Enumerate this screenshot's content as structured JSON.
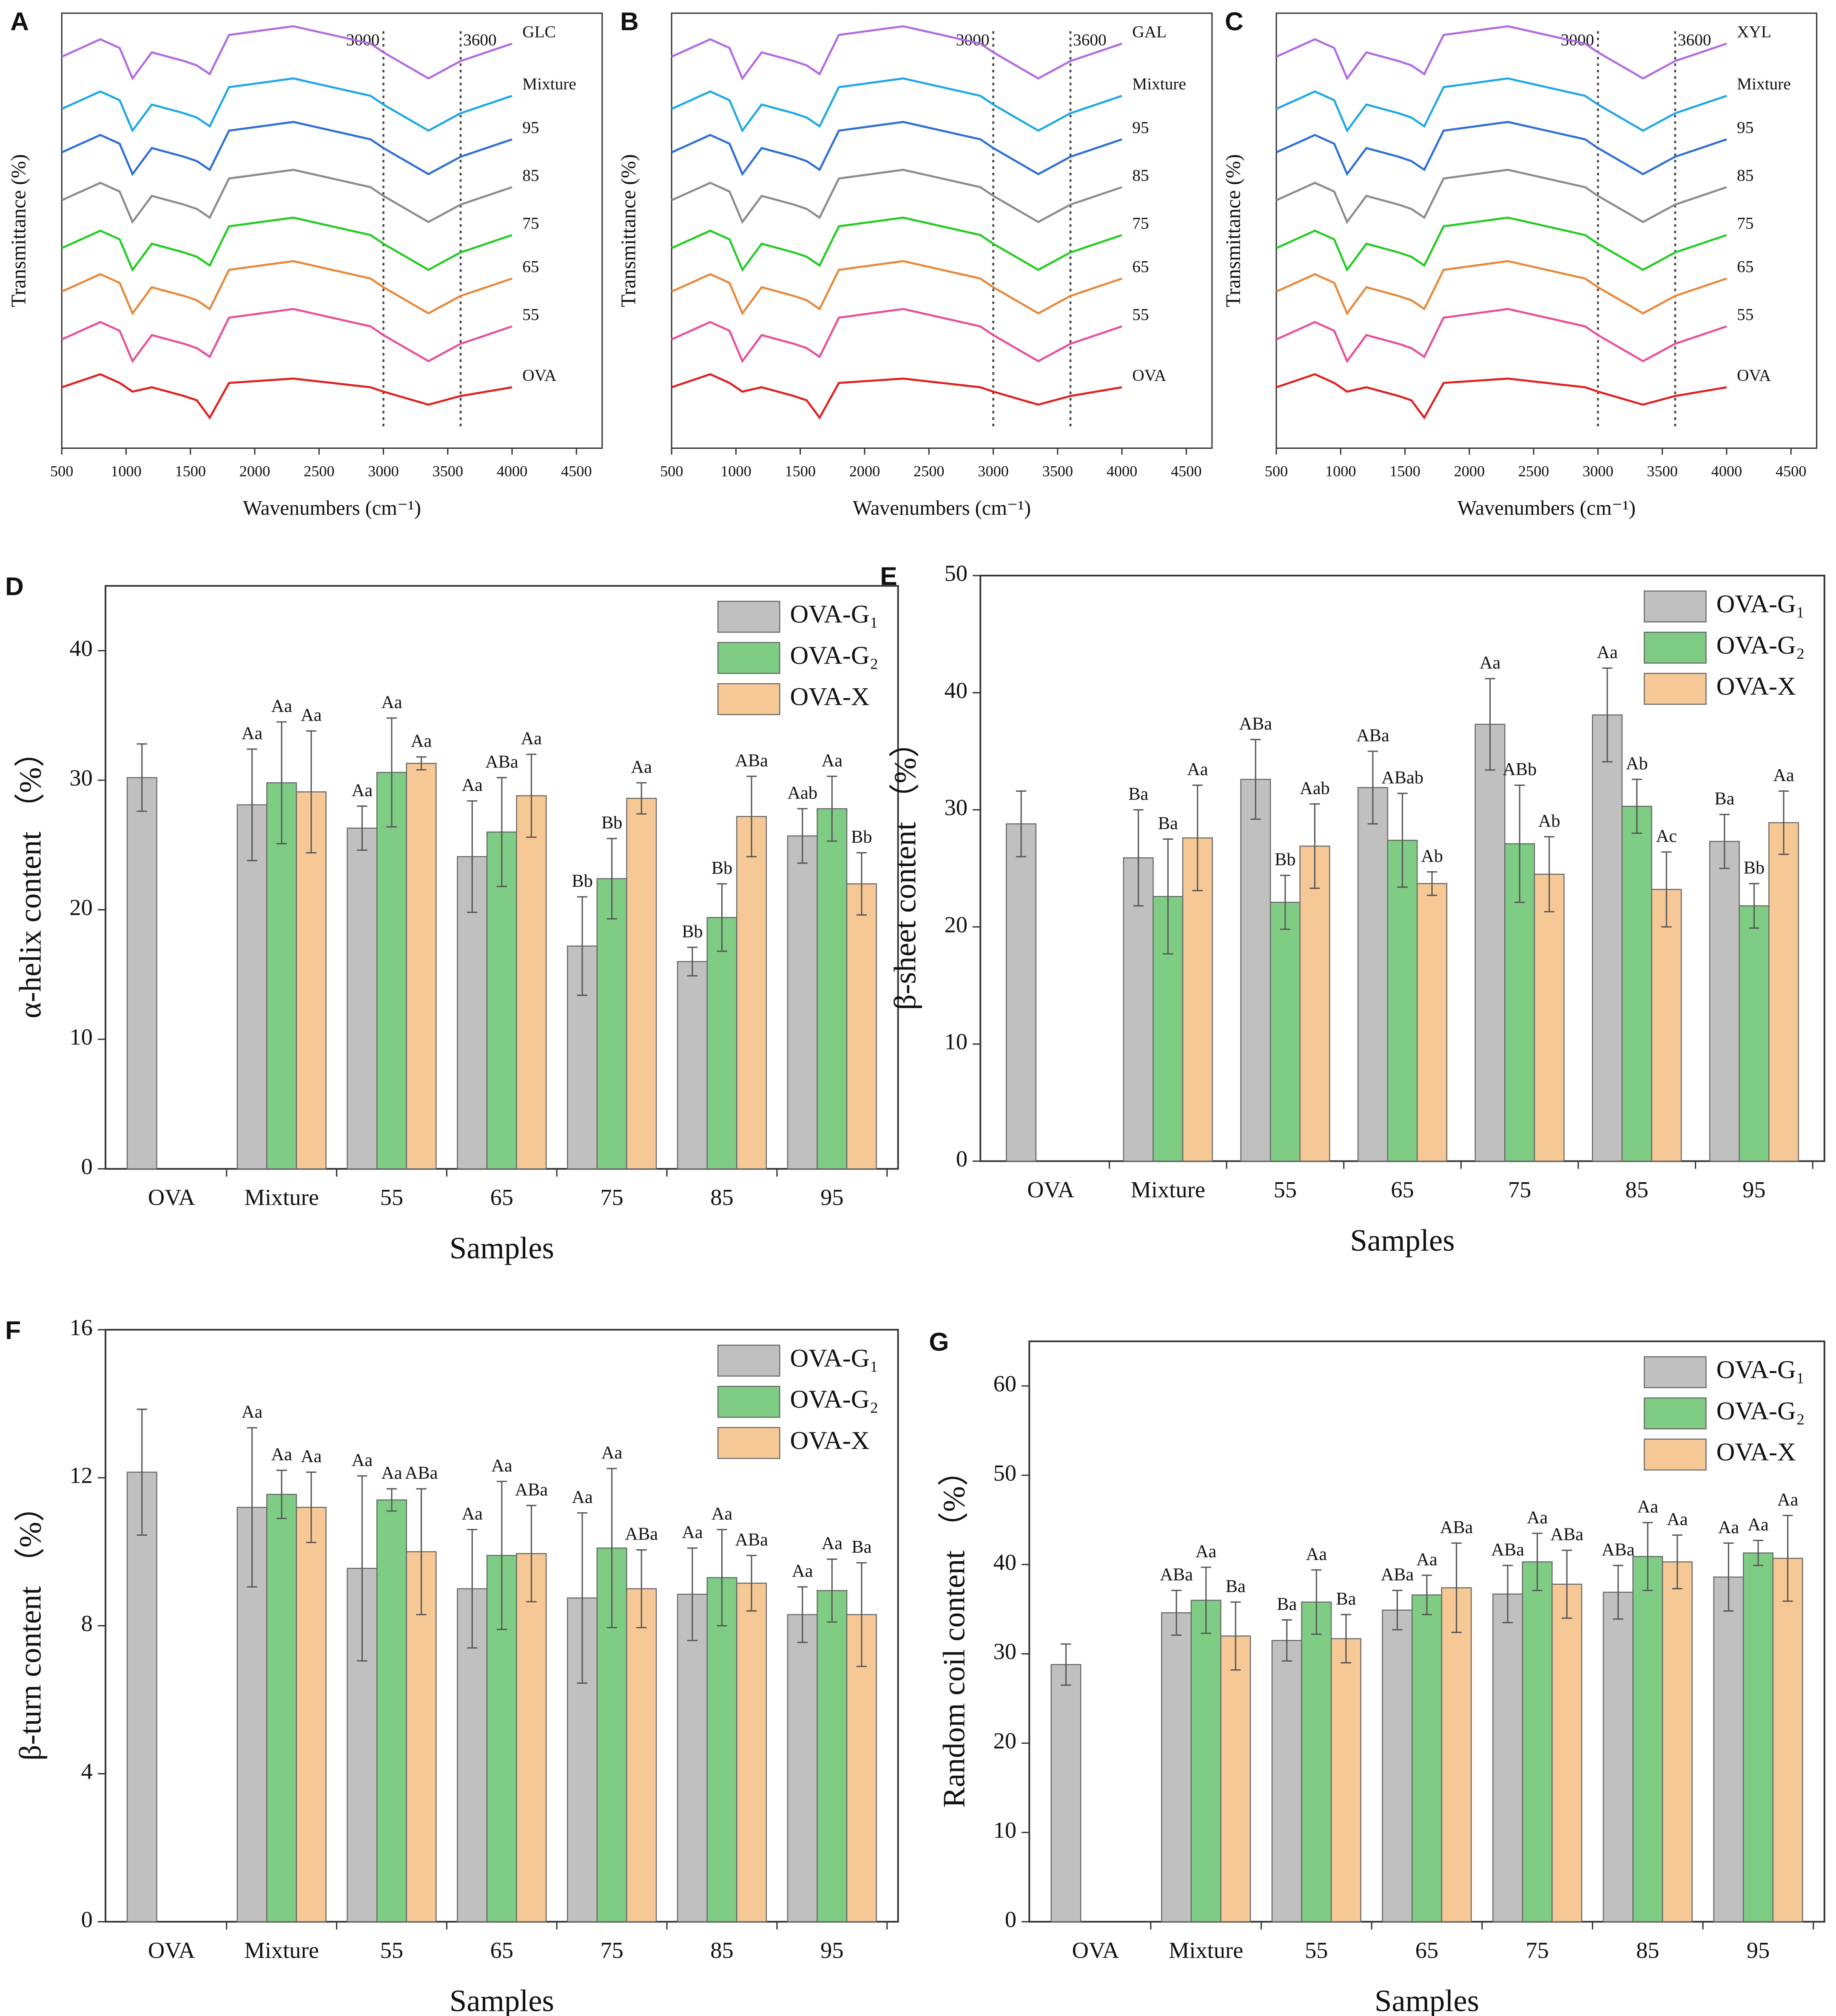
{
  "chart_data": [
    {
      "type": "line",
      "panel": "A",
      "xlabel": "Wavenumbers (cm⁻¹)",
      "ylabel": "Transmittance (%)",
      "xlim": [
        500,
        4700
      ],
      "xticks": [
        500,
        1000,
        1500,
        2000,
        2500,
        3000,
        3500,
        4000,
        4500
      ],
      "ylim": [
        0,
        100
      ],
      "vlines": [
        {
          "value": 3000,
          "label": "3000"
        },
        {
          "value": 3600,
          "label": "3600"
        }
      ],
      "x": [
        500,
        800,
        950,
        1050,
        1200,
        1450,
        1550,
        1650,
        1800,
        2300,
        2900,
        3000,
        3350,
        3600,
        4000
      ],
      "series": [
        {
          "name": "GLC",
          "color": "#b36ae2",
          "values": [
            90,
            94,
            92,
            85,
            91,
            89,
            88,
            86,
            95,
            97,
            93,
            91,
            85,
            89,
            93
          ]
        },
        {
          "name": "Mixture",
          "color": "#1ea7e6",
          "values": [
            78,
            82,
            80,
            73,
            79,
            77,
            76,
            74,
            83,
            85,
            81,
            79,
            73,
            77,
            81
          ]
        },
        {
          "name": "95",
          "color": "#2e6fd6",
          "values": [
            68,
            72,
            70,
            63,
            69,
            67,
            66,
            64,
            73,
            75,
            71,
            69,
            63,
            67,
            71
          ]
        },
        {
          "name": "85",
          "color": "#8c8c8c",
          "values": [
            57,
            61,
            59,
            52,
            58,
            56,
            55,
            53,
            62,
            64,
            60,
            58,
            52,
            56,
            60
          ]
        },
        {
          "name": "75",
          "color": "#22cc22",
          "values": [
            46,
            50,
            48,
            41,
            47,
            45,
            44,
            42,
            51,
            53,
            49,
            47,
            41,
            45,
            49
          ]
        },
        {
          "name": "65",
          "color": "#e8883a",
          "values": [
            36,
            40,
            38,
            31,
            37,
            35,
            34,
            32,
            41,
            43,
            39,
            37,
            31,
            35,
            39
          ]
        },
        {
          "name": "55",
          "color": "#e8509a",
          "values": [
            25,
            29,
            27,
            20,
            26,
            24,
            23,
            21,
            30,
            32,
            28,
            26,
            20,
            24,
            28
          ]
        },
        {
          "name": "OVA",
          "color": "#e02020",
          "values": [
            14,
            17,
            15,
            13,
            14,
            12,
            11,
            7,
            15,
            16,
            14,
            13,
            10,
            12,
            14
          ]
        }
      ]
    },
    {
      "type": "line",
      "panel": "B",
      "xlabel": "Wavenumbers (cm⁻¹)",
      "ylabel": "Transmittance (%)",
      "xlim": [
        500,
        4700
      ],
      "xticks": [
        500,
        1000,
        1500,
        2000,
        2500,
        3000,
        3500,
        4000,
        4500
      ],
      "ylim": [
        0,
        100
      ],
      "vlines": [
        {
          "value": 3000,
          "label": "3000"
        },
        {
          "value": 3600,
          "label": "3600"
        }
      ],
      "x": [
        500,
        800,
        950,
        1050,
        1200,
        1450,
        1550,
        1650,
        1800,
        2300,
        2900,
        3000,
        3350,
        3600,
        4000
      ],
      "series": [
        {
          "name": "GAL",
          "color": "#b36ae2",
          "values": [
            90,
            94,
            92,
            85,
            91,
            89,
            88,
            86,
            95,
            97,
            93,
            91,
            85,
            89,
            93
          ]
        },
        {
          "name": "Mixture",
          "color": "#1ea7e6",
          "values": [
            78,
            82,
            80,
            73,
            79,
            77,
            76,
            74,
            83,
            85,
            81,
            79,
            73,
            77,
            81
          ]
        },
        {
          "name": "95",
          "color": "#2e6fd6",
          "values": [
            68,
            72,
            70,
            63,
            69,
            67,
            66,
            64,
            73,
            75,
            71,
            69,
            63,
            67,
            71
          ]
        },
        {
          "name": "85",
          "color": "#8c8c8c",
          "values": [
            57,
            61,
            59,
            52,
            58,
            56,
            55,
            53,
            62,
            64,
            60,
            58,
            52,
            56,
            60
          ]
        },
        {
          "name": "75",
          "color": "#22cc22",
          "values": [
            46,
            50,
            48,
            41,
            47,
            45,
            44,
            42,
            51,
            53,
            49,
            47,
            41,
            45,
            49
          ]
        },
        {
          "name": "65",
          "color": "#e8883a",
          "values": [
            36,
            40,
            38,
            31,
            37,
            35,
            34,
            32,
            41,
            43,
            39,
            37,
            31,
            35,
            39
          ]
        },
        {
          "name": "55",
          "color": "#e8509a",
          "values": [
            25,
            29,
            27,
            20,
            26,
            24,
            23,
            21,
            30,
            32,
            28,
            26,
            20,
            24,
            28
          ]
        },
        {
          "name": "OVA",
          "color": "#e02020",
          "values": [
            14,
            17,
            15,
            13,
            14,
            12,
            11,
            7,
            15,
            16,
            14,
            13,
            10,
            12,
            14
          ]
        }
      ]
    },
    {
      "type": "line",
      "panel": "C",
      "xlabel": "Wavenumbers (cm⁻¹)",
      "ylabel": "Transmittance (%)",
      "xlim": [
        500,
        4700
      ],
      "xticks": [
        500,
        1000,
        1500,
        2000,
        2500,
        3000,
        3500,
        4000,
        4500
      ],
      "ylim": [
        0,
        100
      ],
      "vlines": [
        {
          "value": 3000,
          "label": "3000"
        },
        {
          "value": 3600,
          "label": "3600"
        }
      ],
      "x": [
        500,
        800,
        950,
        1050,
        1200,
        1450,
        1550,
        1650,
        1800,
        2300,
        2900,
        3000,
        3350,
        3600,
        4000
      ],
      "series": [
        {
          "name": "XYL",
          "color": "#b36ae2",
          "values": [
            90,
            94,
            92,
            85,
            91,
            89,
            88,
            86,
            95,
            97,
            93,
            91,
            85,
            89,
            93
          ]
        },
        {
          "name": "Mixture",
          "color": "#1ea7e6",
          "values": [
            78,
            82,
            80,
            73,
            79,
            77,
            76,
            74,
            83,
            85,
            81,
            79,
            73,
            77,
            81
          ]
        },
        {
          "name": "95",
          "color": "#2e6fd6",
          "values": [
            68,
            72,
            70,
            63,
            69,
            67,
            66,
            64,
            73,
            75,
            71,
            69,
            63,
            67,
            71
          ]
        },
        {
          "name": "85",
          "color": "#8c8c8c",
          "values": [
            57,
            61,
            59,
            52,
            58,
            56,
            55,
            53,
            62,
            64,
            60,
            58,
            52,
            56,
            60
          ]
        },
        {
          "name": "75",
          "color": "#22cc22",
          "values": [
            46,
            50,
            48,
            41,
            47,
            45,
            44,
            42,
            51,
            53,
            49,
            47,
            41,
            45,
            49
          ]
        },
        {
          "name": "65",
          "color": "#e8883a",
          "values": [
            36,
            40,
            38,
            31,
            37,
            35,
            34,
            32,
            41,
            43,
            39,
            37,
            31,
            35,
            39
          ]
        },
        {
          "name": "55",
          "color": "#e8509a",
          "values": [
            25,
            29,
            27,
            20,
            26,
            24,
            23,
            21,
            30,
            32,
            28,
            26,
            20,
            24,
            28
          ]
        },
        {
          "name": "OVA",
          "color": "#e02020",
          "values": [
            14,
            17,
            15,
            13,
            14,
            12,
            11,
            7,
            15,
            16,
            14,
            13,
            10,
            12,
            14
          ]
        }
      ]
    },
    {
      "type": "bar",
      "panel": "D",
      "xlabel": "Samples",
      "ylabel": "α-helix content （%）",
      "legend": "upper right",
      "ylim": [
        0,
        45
      ],
      "yticks": [
        0,
        10,
        20,
        30,
        40
      ],
      "categories": [
        "OVA",
        "Mixture",
        "55",
        "65",
        "75",
        "85",
        "95"
      ],
      "series": [
        {
          "name": "OVA-G₁",
          "color": "#c0c0c0",
          "values": [
            30.2,
            28.1,
            26.3,
            24.1,
            17.2,
            16.0,
            25.7
          ],
          "errors": [
            2.6,
            4.3,
            1.7,
            4.3,
            3.8,
            1.1,
            2.1
          ],
          "letters": [
            null,
            "Aa",
            "Aa",
            "Aa",
            "Bb",
            "Bb",
            "Aab"
          ]
        },
        {
          "name": "OVA-G₂",
          "color": "#7fcc85",
          "values": [
            null,
            29.8,
            30.6,
            26.0,
            22.4,
            19.4,
            27.8
          ],
          "errors": [
            null,
            4.7,
            4.2,
            4.2,
            3.1,
            2.6,
            2.5
          ],
          "letters": [
            null,
            "Aa",
            "Aa",
            "ABa",
            "Bb",
            "Bb",
            "Aa"
          ]
        },
        {
          "name": "OVA-X",
          "color": "#f5c896",
          "values": [
            null,
            29.1,
            31.3,
            28.8,
            28.6,
            27.2,
            22.0
          ],
          "errors": [
            null,
            4.7,
            0.5,
            3.2,
            1.2,
            3.1,
            2.4
          ],
          "letters": [
            null,
            "Aa",
            "Aa",
            "Aa",
            "Aa",
            "ABa",
            "Bb"
          ]
        }
      ]
    },
    {
      "type": "bar",
      "panel": "E",
      "xlabel": "Samples",
      "ylabel": "β-sheet content （%）",
      "legend": "upper right",
      "ylim": [
        0,
        50
      ],
      "yticks": [
        0,
        10,
        20,
        30,
        40,
        50
      ],
      "categories": [
        "OVA",
        "Mixture",
        "55",
        "65",
        "75",
        "85",
        "95"
      ],
      "series": [
        {
          "name": "OVA-G₁",
          "color": "#c0c0c0",
          "values": [
            28.8,
            25.9,
            32.6,
            31.9,
            37.3,
            38.1,
            27.3
          ],
          "errors": [
            2.8,
            4.1,
            3.4,
            3.1,
            3.9,
            4.0,
            2.3
          ],
          "letters": [
            null,
            "Ba",
            "ABa",
            "ABa",
            "Aa",
            "Aa",
            "Ba"
          ]
        },
        {
          "name": "OVA-G₂",
          "color": "#7fcc85",
          "values": [
            null,
            22.6,
            22.1,
            27.4,
            27.1,
            30.3,
            21.8
          ],
          "errors": [
            null,
            4.9,
            2.3,
            4.0,
            5.0,
            2.3,
            1.9
          ],
          "letters": [
            null,
            "Ba",
            "Bb",
            "ABab",
            "ABb",
            "Ab",
            "Bb"
          ]
        },
        {
          "name": "OVA-X",
          "color": "#f5c896",
          "values": [
            null,
            27.6,
            26.9,
            23.7,
            24.5,
            23.2,
            28.9
          ],
          "errors": [
            null,
            4.5,
            3.6,
            1.0,
            3.2,
            3.2,
            2.7
          ],
          "letters": [
            null,
            "Aa",
            "Aab",
            "Ab",
            "Ab",
            "Ac",
            "Aa"
          ]
        }
      ]
    },
    {
      "type": "bar",
      "panel": "F",
      "xlabel": "Samples",
      "ylabel": "β-turn content （%）",
      "legend": "upper right",
      "ylim": [
        0,
        16
      ],
      "yticks": [
        0,
        4,
        8,
        12,
        16
      ],
      "categories": [
        "OVA",
        "Mixture",
        "55",
        "65",
        "75",
        "85",
        "95"
      ],
      "series": [
        {
          "name": "OVA-G₁",
          "color": "#c0c0c0",
          "values": [
            12.15,
            11.2,
            9.55,
            9.0,
            8.75,
            8.85,
            8.3
          ],
          "errors": [
            1.7,
            2.15,
            2.5,
            1.6,
            2.3,
            1.25,
            0.75
          ],
          "letters": [
            null,
            "Aa",
            "Aa",
            "Aa",
            "Aa",
            "Aa",
            "Aa"
          ]
        },
        {
          "name": "OVA-G₂",
          "color": "#7fcc85",
          "values": [
            null,
            11.55,
            11.4,
            9.9,
            10.1,
            9.3,
            8.95
          ],
          "errors": [
            null,
            0.65,
            0.3,
            2.0,
            2.15,
            1.3,
            0.85
          ],
          "letters": [
            null,
            "Aa",
            "Aa",
            "Aa",
            "Aa",
            "Aa",
            "Aa"
          ]
        },
        {
          "name": "OVA-X",
          "color": "#f5c896",
          "values": [
            null,
            11.2,
            10.0,
            9.95,
            9.0,
            9.15,
            8.3
          ],
          "errors": [
            null,
            0.95,
            1.7,
            1.3,
            1.05,
            0.75,
            1.4
          ],
          "letters": [
            null,
            "Aa",
            "ABa",
            "ABa",
            "ABa",
            "ABa",
            "Ba"
          ]
        }
      ]
    },
    {
      "type": "bar",
      "panel": "G",
      "xlabel": "Samples",
      "ylabel": "Random coil content （%）",
      "legend": "upper right",
      "ylim": [
        0,
        65
      ],
      "yticks": [
        0,
        10,
        20,
        30,
        40,
        50,
        60
      ],
      "categories": [
        "OVA",
        "Mixture",
        "55",
        "65",
        "75",
        "85",
        "95"
      ],
      "series": [
        {
          "name": "OVA-G₁",
          "color": "#c0c0c0",
          "values": [
            28.8,
            34.6,
            31.5,
            34.9,
            36.7,
            36.9,
            38.6
          ],
          "errors": [
            2.3,
            2.5,
            2.3,
            2.2,
            3.2,
            3.0,
            3.8
          ],
          "letters": [
            null,
            "ABa",
            "Ba",
            "ABa",
            "ABa",
            "ABa",
            "Aa"
          ]
        },
        {
          "name": "OVA-G₂",
          "color": "#7fcc85",
          "values": [
            null,
            36.0,
            35.8,
            36.6,
            40.3,
            40.9,
            41.3
          ],
          "errors": [
            null,
            3.7,
            3.6,
            2.2,
            3.2,
            3.8,
            1.4
          ],
          "letters": [
            null,
            "Aa",
            "Aa",
            "Aa",
            "Aa",
            "Aa",
            "Aa"
          ]
        },
        {
          "name": "OVA-X",
          "color": "#f5c896",
          "values": [
            null,
            32.0,
            31.7,
            37.4,
            37.8,
            40.3,
            40.7
          ],
          "errors": [
            null,
            3.8,
            2.7,
            5.0,
            3.8,
            3.0,
            4.8
          ],
          "letters": [
            null,
            "Ba",
            "Ba",
            "ABa",
            "ABa",
            "Aa",
            "Aa"
          ]
        }
      ]
    }
  ]
}
